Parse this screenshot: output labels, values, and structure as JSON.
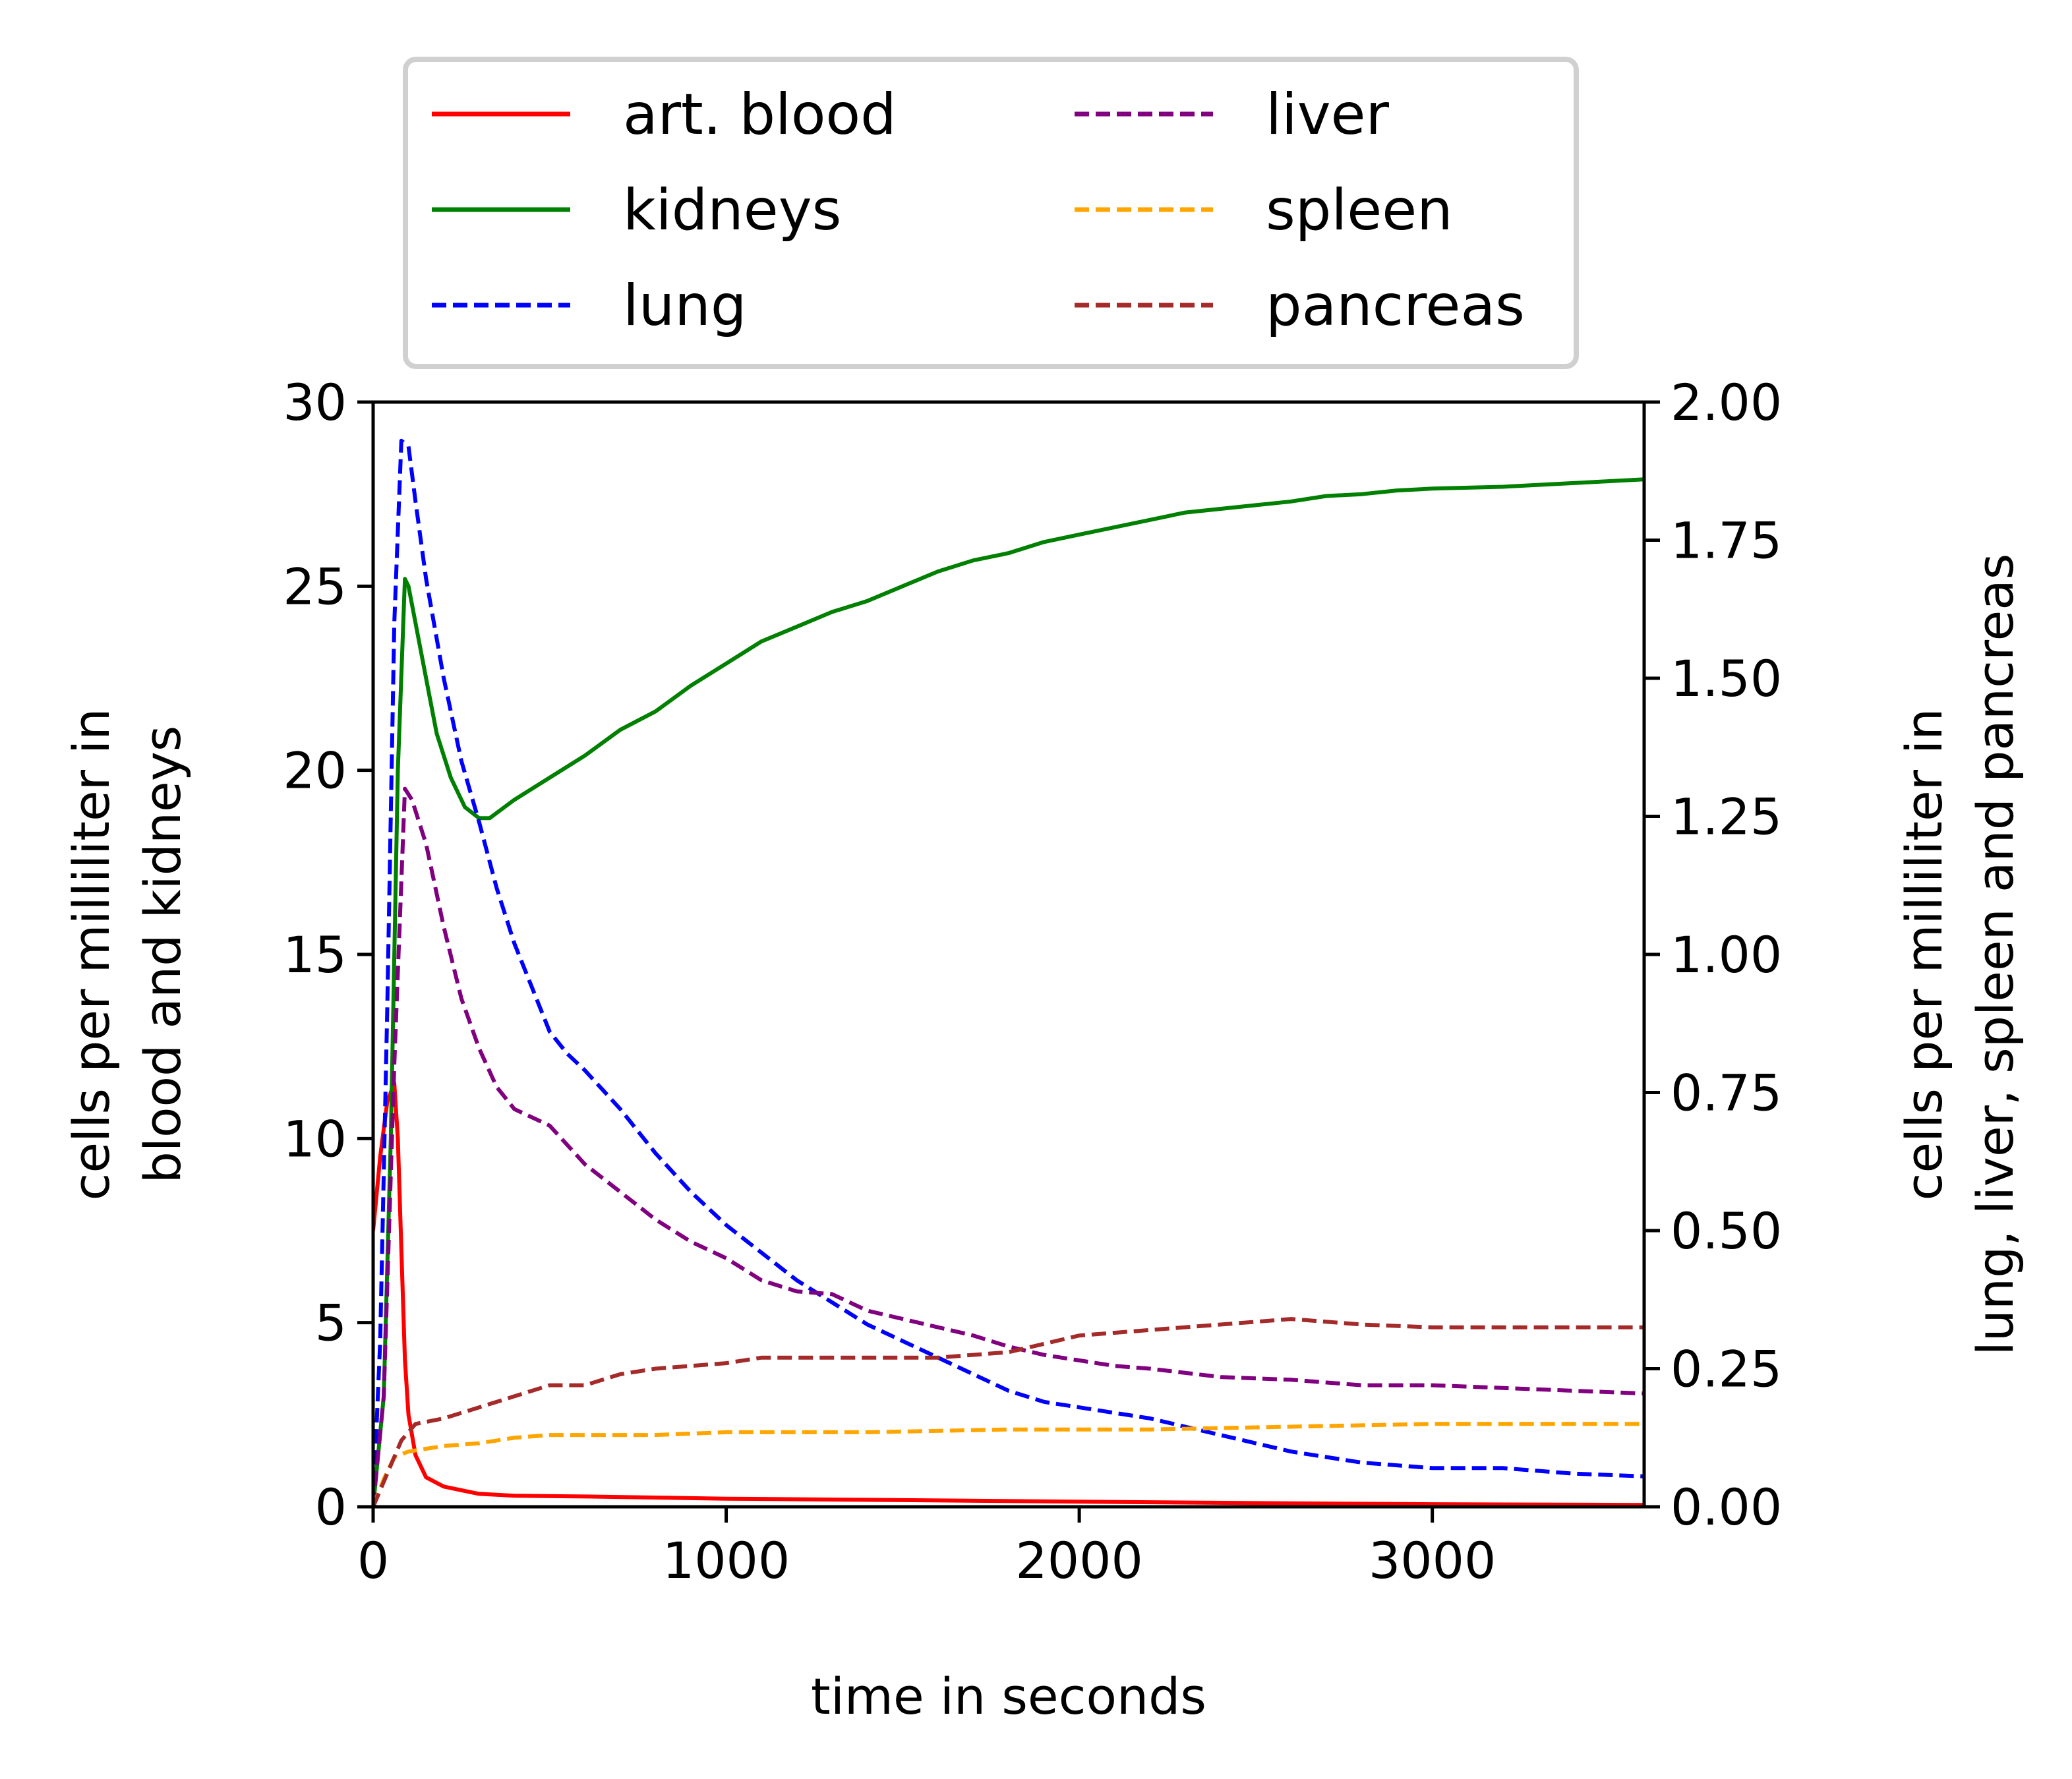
{
  "chart_data": {
    "type": "line",
    "title": "",
    "xlabel": "time in seconds",
    "ylabel_left": [
      "cells per milliliter in",
      "blood and kidneys"
    ],
    "ylabel_right": [
      "cells per milliliter in",
      "lung, liver, spleen and pancreas"
    ],
    "xlim": [
      0,
      3600
    ],
    "ylim_left": [
      0,
      30
    ],
    "ylim_right": [
      0,
      2.0
    ],
    "x_ticks": [
      0,
      1000,
      2000,
      3000
    ],
    "x_tick_labels": [
      "0",
      "1000",
      "2000",
      "3000"
    ],
    "y_left_ticks": [
      0,
      5,
      10,
      15,
      20,
      25,
      30
    ],
    "y_left_tick_labels": [
      "0",
      "5",
      "10",
      "15",
      "20",
      "25",
      "30"
    ],
    "y_right_ticks": [
      0,
      0.25,
      0.5,
      0.75,
      1.0,
      1.25,
      1.5,
      1.75,
      2.0
    ],
    "y_right_tick_labels": [
      "0.00",
      "0.25",
      "0.50",
      "0.75",
      "1.00",
      "1.25",
      "1.50",
      "1.75",
      "2.00"
    ],
    "grid": false,
    "legend": {
      "placement": "above",
      "columns": 2
    },
    "series": [
      {
        "name": "art. blood",
        "axis": "left",
        "color": "#ff0000",
        "style": "solid",
        "points": [
          [
            0,
            7.5
          ],
          [
            20,
            9.5
          ],
          [
            40,
            11
          ],
          [
            60,
            11.5
          ],
          [
            70,
            10
          ],
          [
            80,
            7
          ],
          [
            90,
            4
          ],
          [
            100,
            2.5
          ],
          [
            120,
            1.4
          ],
          [
            150,
            0.8
          ],
          [
            200,
            0.55
          ],
          [
            250,
            0.45
          ],
          [
            300,
            0.35
          ],
          [
            400,
            0.3
          ],
          [
            600,
            0.28
          ],
          [
            1000,
            0.22
          ],
          [
            1500,
            0.18
          ],
          [
            2000,
            0.14
          ],
          [
            2500,
            0.1
          ],
          [
            3000,
            0.07
          ],
          [
            3600,
            0.05
          ]
        ]
      },
      {
        "name": "kidneys",
        "axis": "left",
        "color": "#008000",
        "style": "solid",
        "points": [
          [
            0,
            0
          ],
          [
            30,
            3
          ],
          [
            50,
            10
          ],
          [
            70,
            20
          ],
          [
            90,
            25.2
          ],
          [
            100,
            25
          ],
          [
            120,
            24
          ],
          [
            150,
            22.5
          ],
          [
            180,
            21
          ],
          [
            220,
            19.8
          ],
          [
            260,
            19
          ],
          [
            300,
            18.7
          ],
          [
            330,
            18.7
          ],
          [
            400,
            19.2
          ],
          [
            500,
            19.8
          ],
          [
            600,
            20.4
          ],
          [
            700,
            21.1
          ],
          [
            800,
            21.6
          ],
          [
            900,
            22.3
          ],
          [
            1000,
            22.9
          ],
          [
            1100,
            23.5
          ],
          [
            1200,
            23.9
          ],
          [
            1300,
            24.3
          ],
          [
            1400,
            24.6
          ],
          [
            1500,
            25
          ],
          [
            1600,
            25.4
          ],
          [
            1700,
            25.7
          ],
          [
            1800,
            25.9
          ],
          [
            1900,
            26.2
          ],
          [
            2000,
            26.4
          ],
          [
            2100,
            26.6
          ],
          [
            2200,
            26.8
          ],
          [
            2300,
            27
          ],
          [
            2400,
            27.1
          ],
          [
            2500,
            27.2
          ],
          [
            2600,
            27.3
          ],
          [
            2700,
            27.45
          ],
          [
            2800,
            27.5
          ],
          [
            2900,
            27.6
          ],
          [
            3000,
            27.65
          ],
          [
            3200,
            27.7
          ],
          [
            3400,
            27.8
          ],
          [
            3600,
            27.9
          ]
        ]
      },
      {
        "name": "lung",
        "axis": "right",
        "color": "#0000ff",
        "style": "dashed",
        "points": [
          [
            0,
            0
          ],
          [
            20,
            0.3
          ],
          [
            40,
            0.9
          ],
          [
            60,
            1.6
          ],
          [
            80,
            1.93
          ],
          [
            100,
            1.92
          ],
          [
            120,
            1.82
          ],
          [
            150,
            1.68
          ],
          [
            200,
            1.5
          ],
          [
            250,
            1.35
          ],
          [
            300,
            1.24
          ],
          [
            350,
            1.12
          ],
          [
            400,
            1.02
          ],
          [
            450,
            0.94
          ],
          [
            500,
            0.86
          ],
          [
            550,
            0.82
          ],
          [
            600,
            0.79
          ],
          [
            700,
            0.72
          ],
          [
            800,
            0.64
          ],
          [
            900,
            0.57
          ],
          [
            1000,
            0.51
          ],
          [
            1100,
            0.46
          ],
          [
            1200,
            0.41
          ],
          [
            1300,
            0.37
          ],
          [
            1400,
            0.33
          ],
          [
            1500,
            0.3
          ],
          [
            1600,
            0.27
          ],
          [
            1700,
            0.24
          ],
          [
            1800,
            0.21
          ],
          [
            1900,
            0.19
          ],
          [
            2000,
            0.18
          ],
          [
            2200,
            0.16
          ],
          [
            2400,
            0.13
          ],
          [
            2600,
            0.1
          ],
          [
            2800,
            0.08
          ],
          [
            3000,
            0.07
          ],
          [
            3200,
            0.07
          ],
          [
            3400,
            0.06
          ],
          [
            3600,
            0.055
          ]
        ]
      },
      {
        "name": "liver",
        "axis": "right",
        "color": "#800080",
        "style": "dashed",
        "points": [
          [
            0,
            0
          ],
          [
            30,
            0.2
          ],
          [
            60,
            0.8
          ],
          [
            90,
            1.3
          ],
          [
            110,
            1.28
          ],
          [
            150,
            1.2
          ],
          [
            200,
            1.05
          ],
          [
            250,
            0.92
          ],
          [
            300,
            0.83
          ],
          [
            350,
            0.76
          ],
          [
            400,
            0.72
          ],
          [
            500,
            0.69
          ],
          [
            600,
            0.62
          ],
          [
            700,
            0.57
          ],
          [
            800,
            0.52
          ],
          [
            900,
            0.48
          ],
          [
            1000,
            0.45
          ],
          [
            1100,
            0.41
          ],
          [
            1200,
            0.39
          ],
          [
            1300,
            0.385
          ],
          [
            1400,
            0.355
          ],
          [
            1500,
            0.34
          ],
          [
            1600,
            0.325
          ],
          [
            1700,
            0.31
          ],
          [
            1800,
            0.29
          ],
          [
            1900,
            0.275
          ],
          [
            2000,
            0.265
          ],
          [
            2100,
            0.255
          ],
          [
            2200,
            0.25
          ],
          [
            2400,
            0.235
          ],
          [
            2600,
            0.23
          ],
          [
            2800,
            0.22
          ],
          [
            3000,
            0.22
          ],
          [
            3200,
            0.215
          ],
          [
            3400,
            0.21
          ],
          [
            3600,
            0.205
          ]
        ]
      },
      {
        "name": "spleen",
        "axis": "right",
        "color": "#ffa500",
        "style": "dashed",
        "points": [
          [
            0,
            0
          ],
          [
            30,
            0.05
          ],
          [
            60,
            0.09
          ],
          [
            100,
            0.1
          ],
          [
            200,
            0.11
          ],
          [
            300,
            0.115
          ],
          [
            400,
            0.125
          ],
          [
            500,
            0.13
          ],
          [
            800,
            0.13
          ],
          [
            1000,
            0.135
          ],
          [
            1400,
            0.135
          ],
          [
            1800,
            0.14
          ],
          [
            2200,
            0.14
          ],
          [
            2600,
            0.145
          ],
          [
            3000,
            0.15
          ],
          [
            3600,
            0.15
          ]
        ]
      },
      {
        "name": "pancreas",
        "axis": "right",
        "color": "#a52a2a",
        "style": "dashed",
        "points": [
          [
            0,
            0
          ],
          [
            40,
            0.06
          ],
          [
            80,
            0.12
          ],
          [
            120,
            0.15
          ],
          [
            200,
            0.16
          ],
          [
            300,
            0.18
          ],
          [
            400,
            0.2
          ],
          [
            500,
            0.22
          ],
          [
            600,
            0.22
          ],
          [
            700,
            0.24
          ],
          [
            800,
            0.25
          ],
          [
            1000,
            0.26
          ],
          [
            1100,
            0.27
          ],
          [
            1400,
            0.27
          ],
          [
            1600,
            0.27
          ],
          [
            1800,
            0.28
          ],
          [
            2000,
            0.31
          ],
          [
            2200,
            0.32
          ],
          [
            2400,
            0.33
          ],
          [
            2600,
            0.34
          ],
          [
            2800,
            0.33
          ],
          [
            3000,
            0.325
          ],
          [
            3200,
            0.325
          ],
          [
            3400,
            0.325
          ],
          [
            3600,
            0.325
          ]
        ]
      }
    ]
  }
}
